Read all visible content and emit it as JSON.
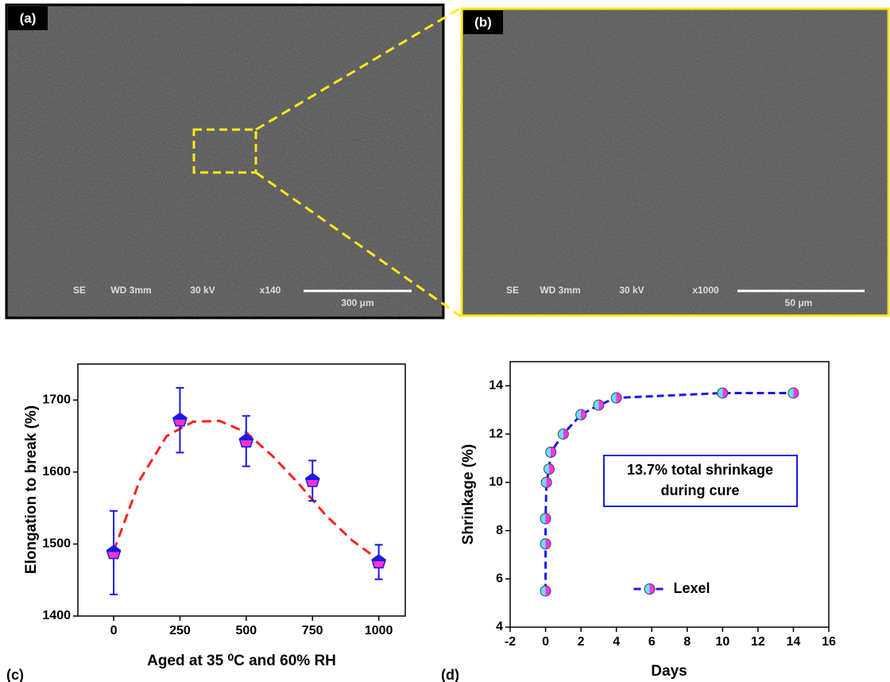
{
  "panels": {
    "a": {
      "label": "(a)",
      "info": [
        "SE",
        "WD 3mm",
        "30 kV",
        "x140"
      ],
      "scale": "300 μm"
    },
    "b": {
      "label": "(b)",
      "info": [
        "SE",
        "WD 3mm",
        "30 kV",
        "x1000"
      ],
      "scale": "50 μm"
    }
  },
  "chart_data": [
    {
      "type": "scatter",
      "label": "(c)",
      "x_label": "Aged at 35 ⁰C and 60% RH",
      "y_label": "Elongation to break (%)",
      "x": [
        0,
        250,
        500,
        750,
        1000
      ],
      "series": [
        {
          "color": "#1a1ae6",
          "fill": [
            "#1a1ae6",
            "#ff33cc"
          ],
          "values": [
            1488,
            1672,
            1643,
            1588,
            1475
          ],
          "errors": [
            58,
            45,
            35,
            28,
            24
          ]
        }
      ],
      "fit": {
        "color": "#ff2020",
        "x": [
          0,
          100,
          200,
          300,
          400,
          500,
          600,
          700,
          800,
          900,
          1000
        ],
        "values": [
          1490,
          1590,
          1650,
          1670,
          1671,
          1655,
          1622,
          1583,
          1540,
          1505,
          1478
        ]
      },
      "xlim": [
        -135,
        1100
      ],
      "ylim": [
        1400,
        1750
      ],
      "xticks": [
        0,
        250,
        500,
        750,
        1000
      ],
      "yticks": [
        1400,
        1500,
        1600,
        1700
      ]
    },
    {
      "type": "line",
      "label": "(d)",
      "x_label": "Days",
      "y_label": "Shrinkage (%)",
      "x": [
        0,
        0,
        0,
        0.05,
        0.2,
        0.3,
        1,
        2,
        3,
        4,
        10,
        14
      ],
      "series": [
        {
          "name": "Lexel",
          "color": "#1a1ae6",
          "fill": [
            "#66e0ff",
            "#ff33ee"
          ],
          "values": [
            5.5,
            7.45,
            8.5,
            10,
            10.55,
            11.25,
            12,
            12.8,
            13.2,
            13.5,
            13.7,
            13.7
          ]
        }
      ],
      "annotation": [
        "13.7% total shrinkage",
        "during cure"
      ],
      "legend": "lower center",
      "xlim": [
        -2,
        16
      ],
      "ylim": [
        4,
        15
      ],
      "xticks": [
        -2,
        0,
        2,
        4,
        6,
        8,
        10,
        12,
        14,
        16
      ],
      "yticks": [
        4,
        6,
        8,
        10,
        12,
        14
      ]
    }
  ]
}
